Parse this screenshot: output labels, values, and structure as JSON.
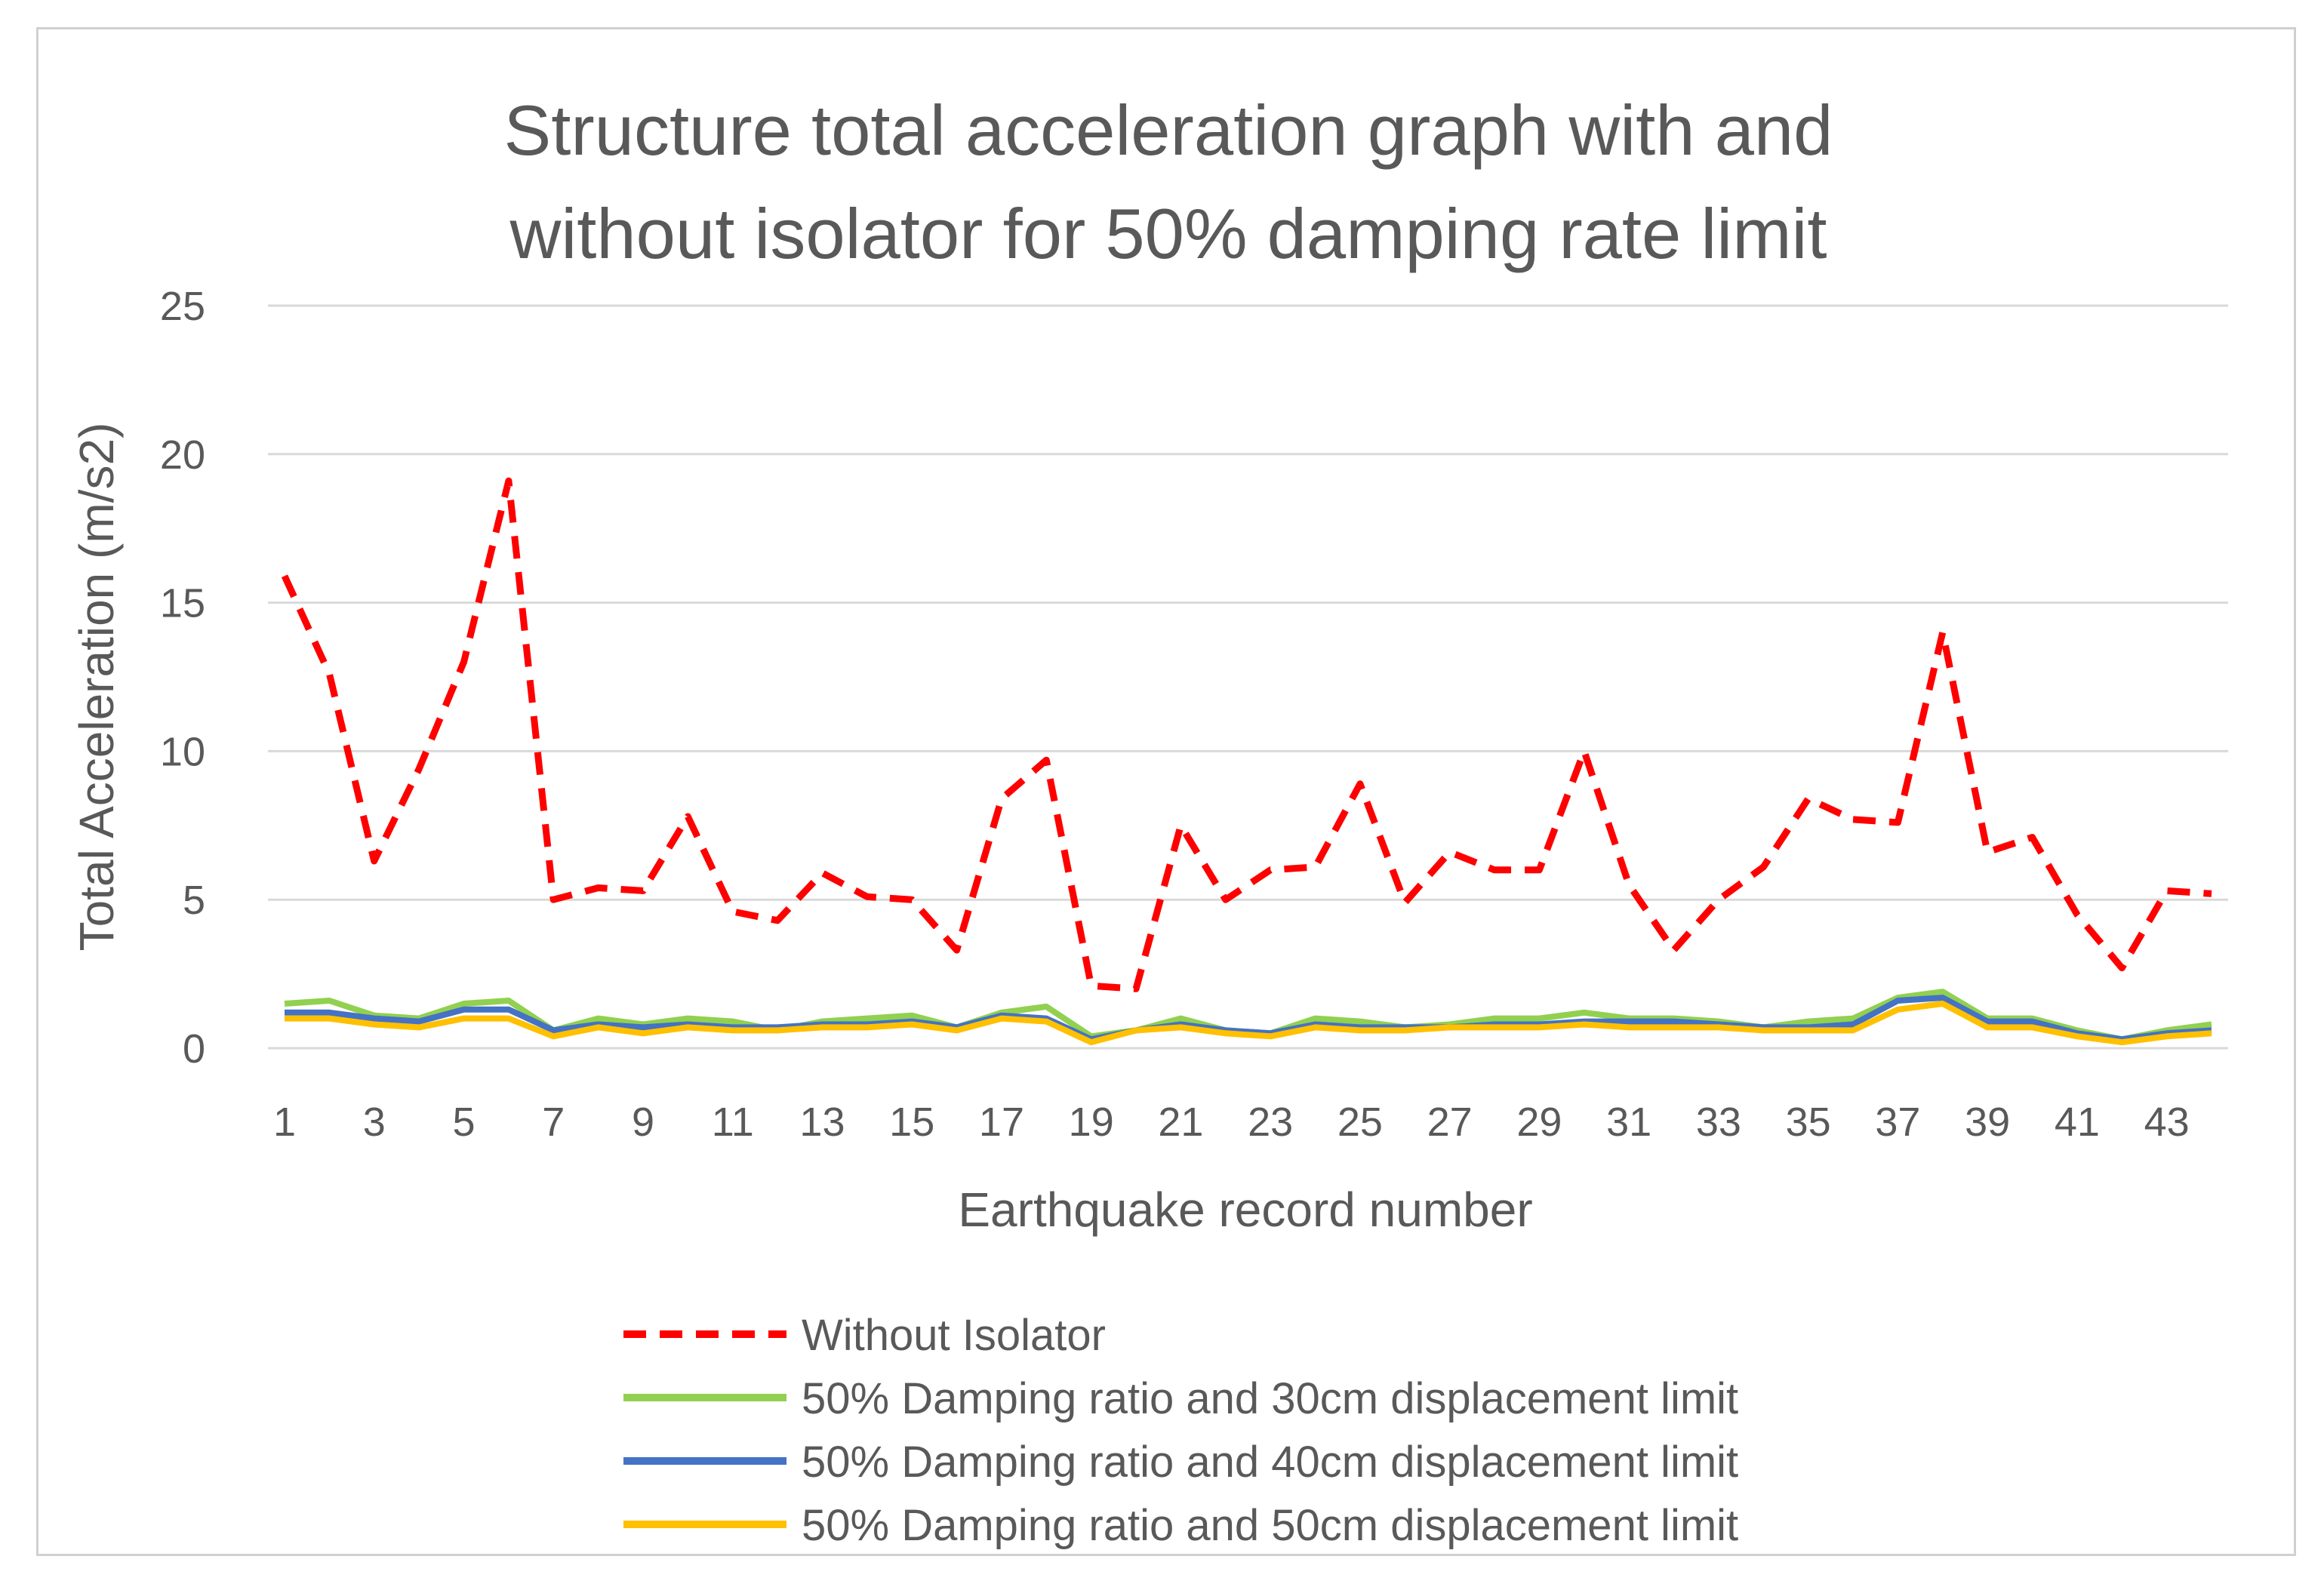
{
  "chart_data": {
    "type": "line",
    "title_lines": [
      "Structure total acceleration graph with and",
      "without isolator for 50% damping rate limit"
    ],
    "xlabel": "Earthquake record number",
    "ylabel": "Total Acceleration (m/s2)",
    "ylim": [
      0,
      25
    ],
    "yticks": [
      0,
      5,
      10,
      15,
      20,
      25
    ],
    "grid": true,
    "legend_position": "bottom",
    "x": [
      1,
      2,
      3,
      4,
      5,
      6,
      7,
      8,
      9,
      10,
      11,
      12,
      13,
      14,
      15,
      16,
      17,
      18,
      19,
      20,
      21,
      22,
      23,
      24,
      25,
      26,
      27,
      28,
      29,
      30,
      31,
      32,
      33,
      34,
      35,
      36,
      37,
      38,
      39,
      40,
      41,
      42,
      43,
      44
    ],
    "xtick_labels": [
      "1",
      "3",
      "5",
      "7",
      "9",
      "11",
      "13",
      "15",
      "17",
      "19",
      "21",
      "23",
      "25",
      "27",
      "29",
      "31",
      "33",
      "35",
      "37",
      "39",
      "41",
      "43"
    ],
    "series": [
      {
        "name": "Without Isolator",
        "color": "#ff0000",
        "style": "dashed",
        "values": [
          15.9,
          12.6,
          6.3,
          9.4,
          13.0,
          19.1,
          5.0,
          5.4,
          5.3,
          7.8,
          4.6,
          4.3,
          5.9,
          5.1,
          5.0,
          3.3,
          8.4,
          9.7,
          2.1,
          2.0,
          7.5,
          5.0,
          6.0,
          6.1,
          8.9,
          4.9,
          6.6,
          6.0,
          6.0,
          10.0,
          5.5,
          3.3,
          5.0,
          6.1,
          8.4,
          7.7,
          7.6,
          14.0,
          6.6,
          7.1,
          4.5,
          2.7,
          5.3,
          5.2
        ]
      },
      {
        "name": "50% Damping ratio and 30cm displacement limit",
        "color": "#92d050",
        "style": "solid",
        "values": [
          1.5,
          1.6,
          1.1,
          1.0,
          1.5,
          1.6,
          0.6,
          1.0,
          0.8,
          1.0,
          0.9,
          0.6,
          0.9,
          1.0,
          1.1,
          0.7,
          1.2,
          1.4,
          0.4,
          0.6,
          1.0,
          0.6,
          0.5,
          1.0,
          0.9,
          0.7,
          0.8,
          1.0,
          1.0,
          1.2,
          1.0,
          1.0,
          0.9,
          0.7,
          0.9,
          1.0,
          1.7,
          1.9,
          1.0,
          1.0,
          0.6,
          0.3,
          0.6,
          0.8
        ]
      },
      {
        "name": "50% Damping ratio and 40cm displacement limit",
        "color": "#4472c4",
        "style": "solid",
        "values": [
          1.2,
          1.2,
          1.0,
          0.9,
          1.3,
          1.3,
          0.6,
          0.8,
          0.7,
          0.8,
          0.7,
          0.7,
          0.8,
          0.8,
          0.9,
          0.7,
          1.1,
          1.0,
          0.3,
          0.6,
          0.8,
          0.6,
          0.5,
          0.8,
          0.7,
          0.7,
          0.7,
          0.8,
          0.8,
          0.9,
          0.9,
          0.9,
          0.8,
          0.7,
          0.7,
          0.8,
          1.6,
          1.7,
          0.9,
          0.9,
          0.5,
          0.3,
          0.5,
          0.6
        ]
      },
      {
        "name": "50% Damping ratio and 50cm displacement limit",
        "color": "#ffc000",
        "style": "solid",
        "values": [
          1.0,
          1.0,
          0.8,
          0.7,
          1.0,
          1.0,
          0.4,
          0.7,
          0.5,
          0.7,
          0.6,
          0.6,
          0.7,
          0.7,
          0.8,
          0.6,
          1.0,
          0.9,
          0.2,
          0.6,
          0.7,
          0.5,
          0.4,
          0.7,
          0.6,
          0.6,
          0.7,
          0.7,
          0.7,
          0.8,
          0.7,
          0.7,
          0.7,
          0.6,
          0.6,
          0.6,
          1.3,
          1.5,
          0.7,
          0.7,
          0.4,
          0.2,
          0.4,
          0.5
        ]
      }
    ]
  }
}
